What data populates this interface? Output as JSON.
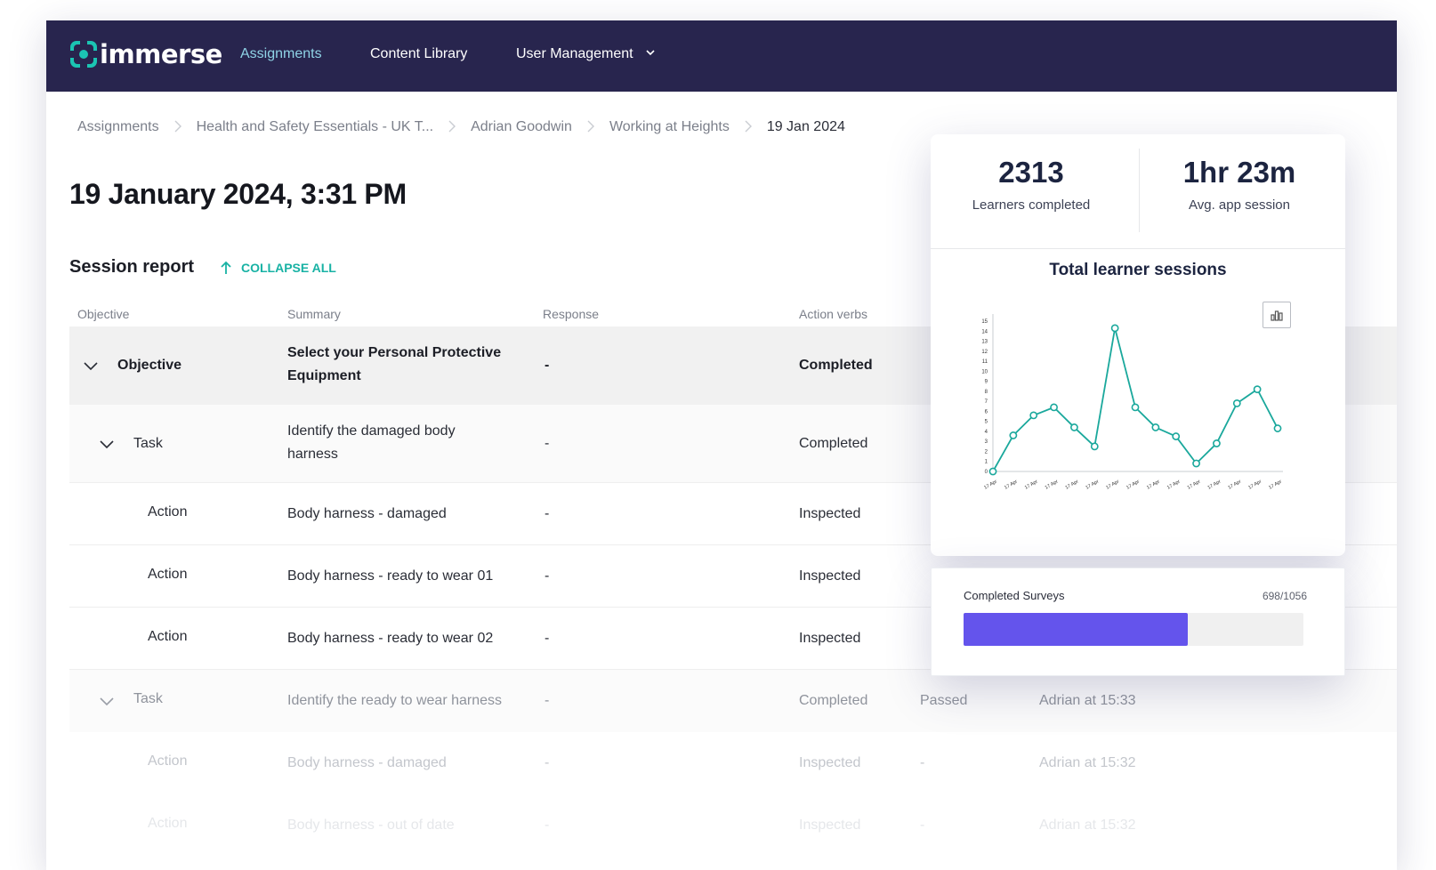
{
  "app": {
    "logo_text": "immerse",
    "brand_color": "#1bc5b3",
    "nav_bg": "#28254e"
  },
  "nav": {
    "assignments": "Assignments",
    "content_library": "Content Library",
    "user_management": "User Management"
  },
  "breadcrumb": [
    "Assignments",
    "Health and Safety Essentials - UK T...",
    "Adrian Goodwin",
    "Working at Heights",
    "19 Jan 2024"
  ],
  "page_title": "19 January 2024, 3:31 PM",
  "session": {
    "title": "Session report",
    "collapse_label": "COLLAPSE ALL"
  },
  "table": {
    "headers": [
      "Objective",
      "Summary",
      "Response",
      "Action verbs"
    ],
    "rows": [
      {
        "type": "Objective",
        "summary": "Select your Personal Protective Equipment",
        "response": "-",
        "verb": "Completed",
        "result": "",
        "actor": ""
      },
      {
        "type": "Task",
        "summary": "Identify the damaged body harness",
        "response": "-",
        "verb": "Completed",
        "result": "",
        "actor": ""
      },
      {
        "type": "Action",
        "summary": "Body harness - damaged",
        "response": "-",
        "verb": "Inspected",
        "result": "",
        "actor": ""
      },
      {
        "type": "Action",
        "summary": "Body harness - ready to wear 01",
        "response": "-",
        "verb": "Inspected",
        "result": "",
        "actor": ""
      },
      {
        "type": "Action",
        "summary": "Body harness - ready to wear 02",
        "response": "-",
        "verb": "Inspected",
        "result": "",
        "actor": ""
      },
      {
        "type": "Task",
        "summary": "Identify the ready to wear harness",
        "response": "-",
        "verb": "Completed",
        "result": "Passed",
        "actor": "Adrian at 15:33"
      },
      {
        "type": "Action",
        "summary": "Body harness - damaged",
        "response": "-",
        "verb": "Inspected",
        "result": "-",
        "actor": "Adrian at 15:32"
      },
      {
        "type": "Action",
        "summary": "Body harness - out of date",
        "response": "-",
        "verb": "Inspected",
        "result": "-",
        "actor": "Adrian at 15:32"
      }
    ]
  },
  "stats": {
    "learners_completed_value": "2313",
    "learners_completed_label": "Learners completed",
    "avg_session_value": "1hr 23m",
    "avg_session_label": "Avg. app session"
  },
  "chart_data": {
    "type": "line",
    "title": "Total learner sessions",
    "categories": [
      "17 Apr",
      "17 Apr",
      "17 Apr",
      "17 Apr",
      "17 Apr",
      "17 Apr",
      "17 Apr",
      "17 Apr",
      "17 Apr",
      "17 Apr",
      "17 Apr",
      "17 Apr",
      "17 Apr",
      "17 Apr",
      "17 Apr"
    ],
    "values": [
      0,
      3.6,
      5.6,
      6.4,
      4.4,
      2.5,
      14.3,
      6.4,
      4.4,
      3.5,
      0.8,
      2.8,
      6.8,
      8.2,
      4.3
    ],
    "y_ticks": [
      "0",
      "1",
      "2",
      "3",
      "4",
      "5",
      "6",
      "7",
      "8",
      "9",
      "10",
      "11",
      "12",
      "13",
      "14",
      "15"
    ],
    "ylim": [
      0,
      15
    ],
    "line_color": "#1aa89c",
    "grid": false,
    "legend": "none"
  },
  "chart_toggle_icon": "bar-chart-icon",
  "surveys": {
    "label": "Completed Surveys",
    "count_label": "698/1056",
    "completed": 698,
    "total": 1056,
    "bar_color": "#6454ec"
  }
}
